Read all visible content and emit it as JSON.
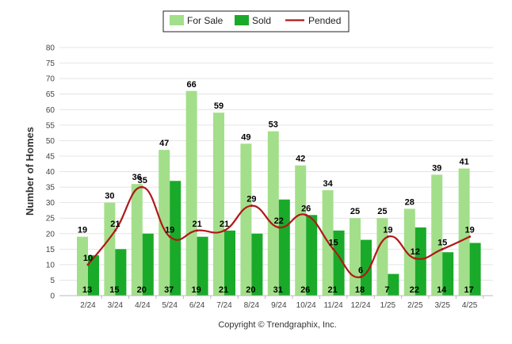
{
  "chart_data": {
    "type": "bar",
    "categories": [
      "2/24",
      "3/24",
      "4/24",
      "5/24",
      "6/24",
      "7/24",
      "8/24",
      "9/24",
      "10/24",
      "11/24",
      "12/24",
      "1/25",
      "2/25",
      "3/25",
      "4/25"
    ],
    "series": [
      {
        "name": "For Sale",
        "type": "bar",
        "color": "#a3df8a",
        "values": [
          19,
          30,
          36,
          47,
          66,
          59,
          49,
          53,
          42,
          34,
          25,
          25,
          28,
          39,
          41
        ]
      },
      {
        "name": "Sold",
        "type": "bar",
        "color": "#1aaa2a",
        "values": [
          13,
          15,
          20,
          37,
          19,
          21,
          20,
          31,
          26,
          21,
          18,
          7,
          22,
          14,
          17
        ]
      },
      {
        "name": "Pended",
        "type": "line",
        "color": "#b01818",
        "values": [
          10,
          21,
          35,
          19,
          21,
          21,
          29,
          22,
          26,
          15,
          6,
          19,
          12,
          15,
          19
        ]
      }
    ],
    "ylabel": "Number of Homes",
    "xlabel": "",
    "ylim": [
      0,
      80
    ],
    "yticks": [
      0,
      5,
      10,
      15,
      20,
      25,
      30,
      35,
      40,
      45,
      50,
      55,
      60,
      65,
      70,
      75,
      80
    ],
    "grid": true,
    "legend_position": "top-center"
  },
  "footer": {
    "copyright": "Copyright © Trendgraphix, Inc."
  }
}
